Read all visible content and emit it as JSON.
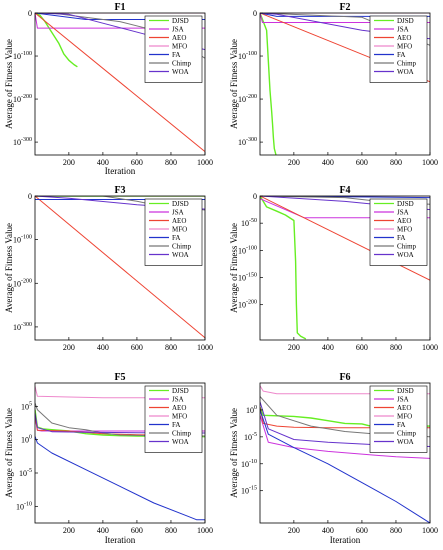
{
  "figure": {
    "legend_entries": [
      "DJSD",
      "JSA",
      "AEO",
      "MFO",
      "FA",
      "Chimp",
      "WOA"
    ],
    "series_colors": {
      "DJSD": "#66ee22",
      "JSA": "#cc33dd",
      "AEO": "#ee4433",
      "MFO": "#ee88cc",
      "FA": "#2233cc",
      "Chimp": "#777777",
      "WOA": "#6633cc"
    }
  },
  "chart_data": [
    {
      "type": "line",
      "title": "F1",
      "xlabel": "Iteration",
      "ylabel": "Average of Fitness Value",
      "xlim": [
        1,
        1000
      ],
      "xticks": [
        200,
        400,
        600,
        800,
        1000
      ],
      "yscale": "log",
      "ylim_exp": [
        -330,
        0
      ],
      "yticks": [
        {
          "exp": 0,
          "label": "0",
          "sup": ""
        },
        {
          "exp": -100,
          "label": "10",
          "sup": "-100"
        },
        {
          "exp": -200,
          "label": "10",
          "sup": "-200"
        },
        {
          "exp": -300,
          "label": "10",
          "sup": "-300"
        }
      ],
      "legend": "top-right",
      "grid": false,
      "series": [
        {
          "name": "DJSD",
          "x": [
            1,
            30,
            60,
            100,
            140,
            170,
            200,
            230,
            250
          ],
          "y_exp": [
            0,
            -5,
            -20,
            -45,
            -70,
            -95,
            -110,
            -120,
            -125
          ]
        },
        {
          "name": "JSA",
          "x": [
            1,
            15,
            1000
          ],
          "y_exp": [
            0,
            -35,
            -35
          ]
        },
        {
          "name": "AEO",
          "x": [
            1,
            1000
          ],
          "y_exp": [
            0,
            -322
          ]
        },
        {
          "name": "MFO",
          "x": [
            1,
            1000
          ],
          "y_exp": [
            0,
            0
          ]
        },
        {
          "name": "FA",
          "x": [
            1,
            300,
            1000
          ],
          "y_exp": [
            0,
            -15,
            -15
          ]
        },
        {
          "name": "Chimp",
          "x": [
            1,
            100,
            500,
            700,
            750,
            850,
            1000
          ],
          "y_exp": [
            0,
            0,
            -20,
            -40,
            -55,
            -70,
            -105
          ]
        },
        {
          "name": "WOA",
          "x": [
            1,
            200,
            750,
            1000
          ],
          "y_exp": [
            0,
            -3,
            -60,
            -85
          ]
        }
      ]
    },
    {
      "type": "line",
      "title": "F2",
      "xlabel": "",
      "ylabel": "Average of Fitness Value",
      "xlim": [
        1,
        1000
      ],
      "xticks": [
        200,
        400,
        600,
        800,
        1000
      ],
      "yscale": "log",
      "ylim_exp": [
        -330,
        0
      ],
      "yticks": [
        {
          "exp": 0,
          "label": "0",
          "sup": ""
        },
        {
          "exp": -100,
          "label": "10",
          "sup": "-100"
        },
        {
          "exp": -200,
          "label": "10",
          "sup": "-200"
        },
        {
          "exp": -300,
          "label": "10",
          "sup": "-300"
        }
      ],
      "legend": "top-right",
      "grid": false,
      "series": [
        {
          "name": "DJSD",
          "x": [
            1,
            40,
            50,
            60,
            70,
            75,
            80,
            85,
            95
          ],
          "y_exp": [
            0,
            -40,
            -110,
            -180,
            -230,
            -260,
            -290,
            -315,
            -330
          ]
        },
        {
          "name": "JSA",
          "x": [
            1,
            15,
            1000
          ],
          "y_exp": [
            0,
            -22,
            -22
          ]
        },
        {
          "name": "AEO",
          "x": [
            1,
            1000
          ],
          "y_exp": [
            0,
            -160
          ]
        },
        {
          "name": "MFO",
          "x": [
            1,
            1000
          ],
          "y_exp": [
            0,
            0
          ]
        },
        {
          "name": "FA",
          "x": [
            1,
            100,
            1000
          ],
          "y_exp": [
            0,
            -8,
            -8
          ]
        },
        {
          "name": "Chimp",
          "x": [
            1,
            600,
            1000
          ],
          "y_exp": [
            0,
            -10,
            -75
          ]
        },
        {
          "name": "WOA",
          "x": [
            1,
            100,
            600,
            1000
          ],
          "y_exp": [
            0,
            -3,
            -40,
            -60
          ]
        }
      ]
    },
    {
      "type": "line",
      "title": "F3",
      "xlabel": "",
      "ylabel": "Average of Fitness Value",
      "xlim": [
        1,
        1000
      ],
      "xticks": [
        200,
        400,
        600,
        800,
        1000
      ],
      "yscale": "log",
      "ylim_exp": [
        -330,
        0
      ],
      "yticks": [
        {
          "exp": 0,
          "label": "0",
          "sup": ""
        },
        {
          "exp": -100,
          "label": "10",
          "sup": "-100"
        },
        {
          "exp": -200,
          "label": "10",
          "sup": "-200"
        },
        {
          "exp": -300,
          "label": "10",
          "sup": "-300"
        }
      ],
      "legend": "top-right",
      "grid": false,
      "series": [
        {
          "name": "DJSD",
          "x": [
            1,
            1000
          ],
          "y_exp": [
            0,
            0
          ]
        },
        {
          "name": "JSA",
          "x": [
            1,
            1000
          ],
          "y_exp": [
            0,
            0
          ]
        },
        {
          "name": "AEO",
          "x": [
            1,
            1000
          ],
          "y_exp": [
            0,
            -325
          ]
        },
        {
          "name": "MFO",
          "x": [
            1,
            1000
          ],
          "y_exp": [
            0,
            0
          ]
        },
        {
          "name": "FA",
          "x": [
            1,
            1000
          ],
          "y_exp": [
            -8,
            -8
          ]
        },
        {
          "name": "Chimp",
          "x": [
            1,
            400,
            600,
            700,
            1000
          ],
          "y_exp": [
            0,
            0,
            -12,
            -20,
            -32
          ]
        },
        {
          "name": "WOA",
          "x": [
            1,
            200,
            600,
            1000
          ],
          "y_exp": [
            0,
            -5,
            -20,
            -30
          ]
        }
      ]
    },
    {
      "type": "line",
      "title": "F4",
      "xlabel": "",
      "ylabel": "Average of Fitness Value",
      "xlim": [
        1,
        1000
      ],
      "xticks": [
        200,
        400,
        600,
        800,
        1000
      ],
      "yscale": "log",
      "ylim_exp": [
        -265,
        0
      ],
      "yticks": [
        {
          "exp": 0,
          "label": "0",
          "sup": ""
        },
        {
          "exp": -50,
          "label": "10",
          "sup": "-50"
        },
        {
          "exp": -100,
          "label": "10",
          "sup": "-100"
        },
        {
          "exp": -150,
          "label": "10",
          "sup": "-150"
        },
        {
          "exp": -200,
          "label": "10",
          "sup": "-200"
        }
      ],
      "legend": "top-right",
      "grid": false,
      "series": [
        {
          "name": "DJSD",
          "x": [
            1,
            40,
            100,
            150,
            200,
            210,
            215,
            220,
            240,
            270
          ],
          "y_exp": [
            0,
            -20,
            -28,
            -35,
            -45,
            -120,
            -200,
            -252,
            -258,
            -263
          ]
        },
        {
          "name": "JSA",
          "x": [
            1,
            260,
            1000
          ],
          "y_exp": [
            -5,
            -40,
            -40
          ]
        },
        {
          "name": "AEO",
          "x": [
            1,
            1000
          ],
          "y_exp": [
            0,
            -155
          ]
        },
        {
          "name": "MFO",
          "x": [
            1,
            1000
          ],
          "y_exp": [
            0,
            0
          ]
        },
        {
          "name": "FA",
          "x": [
            1,
            1000
          ],
          "y_exp": [
            0,
            -3
          ]
        },
        {
          "name": "Chimp",
          "x": [
            1,
            500,
            700,
            1000
          ],
          "y_exp": [
            0,
            -3,
            -10,
            -15
          ]
        },
        {
          "name": "WOA",
          "x": [
            1,
            500,
            1000
          ],
          "y_exp": [
            0,
            -10,
            -25
          ]
        }
      ]
    },
    {
      "type": "line",
      "title": "F5",
      "xlabel": "Iteration",
      "ylabel": "Average of Fitness Value",
      "xlim": [
        1,
        1000
      ],
      "xticks": [
        200,
        400,
        600,
        800,
        1000
      ],
      "yscale": "log",
      "ylim_exp": [
        -12.5,
        8.5
      ],
      "yticks": [
        {
          "exp": 5,
          "label": "10",
          "sup": "5"
        },
        {
          "exp": 0,
          "label": "10",
          "sup": "0"
        },
        {
          "exp": -5,
          "label": "10",
          "sup": "-5"
        },
        {
          "exp": -10,
          "label": "10",
          "sup": "-10"
        }
      ],
      "legend": "top-right",
      "grid": false,
      "series": [
        {
          "name": "DJSD",
          "x": [
            1,
            15,
            50,
            100,
            200,
            300,
            400,
            500,
            600,
            800,
            1000
          ],
          "y_exp": [
            4.5,
            1.9,
            1.6,
            1.5,
            1.3,
            0.9,
            0.7,
            0.6,
            0.55,
            0.5,
            0.45
          ]
        },
        {
          "name": "JSA",
          "x": [
            1,
            15,
            40,
            1000
          ],
          "y_exp": [
            3.5,
            1.4,
            1.3,
            1.3
          ]
        },
        {
          "name": "AEO",
          "x": [
            1,
            15,
            200,
            400,
            600,
            800,
            1000
          ],
          "y_exp": [
            3.5,
            1.4,
            1.3,
            0.9,
            0.75,
            0.65,
            0.55
          ]
        },
        {
          "name": "MFO",
          "x": [
            1,
            15,
            200,
            400,
            1000
          ],
          "y_exp": [
            8.0,
            6.5,
            6.4,
            6.3,
            6.3
          ]
        },
        {
          "name": "FA",
          "x": [
            1,
            15,
            100,
            300,
            500,
            700,
            900,
            950,
            1000
          ],
          "y_exp": [
            0.5,
            -0.5,
            -2.0,
            -4.5,
            -7.0,
            -9.5,
            -11.5,
            -12.0,
            -12.0
          ]
        },
        {
          "name": "Chimp",
          "x": [
            1,
            15,
            100,
            200,
            300,
            400,
            500,
            700,
            1000
          ],
          "y_exp": [
            5.5,
            4.5,
            2.5,
            1.8,
            1.5,
            1.0,
            0.7,
            0.6,
            0.55
          ]
        },
        {
          "name": "WOA",
          "x": [
            1,
            15,
            100,
            300,
            600,
            1000
          ],
          "y_exp": [
            4.0,
            1.8,
            1.2,
            1.1,
            1.05,
            1.0
          ]
        }
      ]
    },
    {
      "type": "line",
      "title": "F6",
      "xlabel": "Iteration",
      "ylabel": "Average of Fitness Value",
      "xlim": [
        1,
        1000
      ],
      "xticks": [
        200,
        400,
        600,
        800,
        1000
      ],
      "yscale": "log",
      "ylim_exp": [
        -21,
        5
      ],
      "yticks": [
        {
          "exp": 0,
          "label": "10",
          "sup": "0"
        },
        {
          "exp": -5,
          "label": "10",
          "sup": "-5"
        },
        {
          "exp": -10,
          "label": "10",
          "sup": "-10"
        },
        {
          "exp": -15,
          "label": "10",
          "sup": "-15"
        }
      ],
      "legend": "top-right",
      "grid": false,
      "series": [
        {
          "name": "DJSD",
          "x": [
            1,
            20,
            200,
            300,
            400,
            500,
            600,
            650,
            1000
          ],
          "y_exp": [
            0.5,
            -1.0,
            -1.2,
            -1.5,
            -2.0,
            -2.5,
            -2.6,
            -3.0,
            -3.0
          ]
        },
        {
          "name": "JSA",
          "x": [
            1,
            50,
            200,
            400,
            600,
            800,
            1000
          ],
          "y_exp": [
            -1.0,
            -6.0,
            -7.0,
            -7.7,
            -8.2,
            -8.7,
            -9.0
          ]
        },
        {
          "name": "AEO",
          "x": [
            1,
            20,
            100,
            200,
            400,
            1000
          ],
          "y_exp": [
            0.5,
            -2.5,
            -3.0,
            -3.2,
            -3.3,
            -3.3
          ]
        },
        {
          "name": "MFO",
          "x": [
            1,
            20,
            100,
            1000
          ],
          "y_exp": [
            4.5,
            3.5,
            3.0,
            3.0
          ]
        },
        {
          "name": "FA",
          "x": [
            1,
            50,
            200,
            400,
            600,
            800,
            1000
          ],
          "y_exp": [
            0.0,
            -4.5,
            -7.0,
            -10.0,
            -13.5,
            -17.0,
            -21.0
          ]
        },
        {
          "name": "Chimp",
          "x": [
            1,
            100,
            300,
            500,
            700,
            1000
          ],
          "y_exp": [
            2.5,
            -1.0,
            -3.0,
            -4.0,
            -4.5,
            -5.0
          ]
        },
        {
          "name": "WOA",
          "x": [
            1,
            50,
            200,
            400,
            700,
            1000
          ],
          "y_exp": [
            1.5,
            -3.5,
            -5.5,
            -6.0,
            -6.5,
            -6.8
          ]
        }
      ]
    }
  ]
}
